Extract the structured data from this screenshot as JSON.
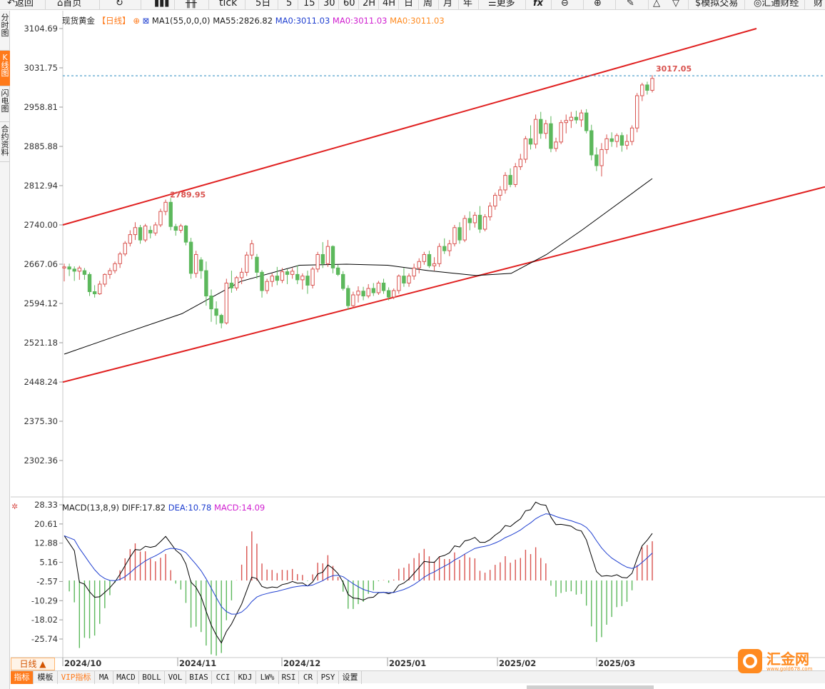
{
  "toolbar": {
    "back": "返回",
    "home": "首页",
    "tick": "tick",
    "periods": [
      "5日",
      "5",
      "15",
      "30",
      "60",
      "2H",
      "4H",
      "日",
      "周",
      "月",
      "年"
    ],
    "more": "更多",
    "fx": "fx",
    "simulate": "模拟交易",
    "huitong": "汇通财经",
    "cut": "财"
  },
  "sidebar": {
    "items": [
      {
        "label": "分时图"
      },
      {
        "label": "K线图",
        "active": true
      },
      {
        "label": "闪电图"
      },
      {
        "label": "合约资料"
      }
    ]
  },
  "main": {
    "instrument": "现货黄金",
    "period_tag": "【日线】",
    "ma_label": "MA1(55,0,0,0)",
    "ma55": "MA55:2826.82",
    "ma0_a": "MA0:3011.03",
    "ma0_b": "MA0:3011.03",
    "ma0_c": "MA0:3011.03",
    "high_label": "2789.95",
    "last_label": "3017.05"
  },
  "macd": {
    "label": "MACD(13,8,9)",
    "diff": "DIFF:17.82",
    "dea": "DEA:10.78",
    "macd": "MACD:14.09"
  },
  "period_button": "日线 ▲",
  "bottom_tabs": [
    "指标",
    "模板",
    "VIP指标",
    "MA",
    "MACD",
    "BOLL",
    "VOL",
    "BIAS",
    "CCI",
    "KDJ",
    "LW%",
    "RSI",
    "CR",
    "PSY",
    "设置"
  ],
  "logo": {
    "name": "汇金网",
    "url": "www.gold678.com"
  },
  "colors": {
    "up": "#d9534f",
    "down": "#5cb85c",
    "channel": "#e02020",
    "ma": "#000000",
    "dea": "#1f3fd0",
    "accent": "#ff7a1a"
  },
  "chart_data": [
    {
      "type": "candlestick",
      "title": "现货黄金",
      "y_ticks": [
        "3104.69",
        "3031.75",
        "2958.81",
        "2885.88",
        "2812.94",
        "2740.00",
        "2667.06",
        "2594.12",
        "2521.18",
        "2448.24",
        "2375.30",
        "2302.36"
      ],
      "x_ticks": [
        "2024/10",
        "2024/11",
        "2024/12",
        "2025/01",
        "2025/02",
        "2025/03"
      ],
      "ylim": [
        2302.36,
        3104.69
      ],
      "candles": [
        [
          2660,
          2668,
          2635,
          2662
        ],
        [
          2662,
          2668,
          2645,
          2658
        ],
        [
          2658,
          2663,
          2636,
          2654
        ],
        [
          2654,
          2664,
          2638,
          2660
        ],
        [
          2655,
          2660,
          2638,
          2648
        ],
        [
          2648,
          2652,
          2608,
          2616
        ],
        [
          2616,
          2628,
          2605,
          2612
        ],
        [
          2612,
          2636,
          2610,
          2630
        ],
        [
          2630,
          2650,
          2625,
          2648
        ],
        [
          2648,
          2660,
          2640,
          2655
        ],
        [
          2655,
          2672,
          2650,
          2668
        ],
        [
          2668,
          2690,
          2660,
          2686
        ],
        [
          2686,
          2710,
          2682,
          2706
        ],
        [
          2706,
          2730,
          2700,
          2722
        ],
        [
          2722,
          2745,
          2712,
          2735
        ],
        [
          2735,
          2740,
          2705,
          2712
        ],
        [
          2712,
          2742,
          2708,
          2738
        ],
        [
          2730,
          2738,
          2715,
          2725
        ],
        [
          2725,
          2745,
          2720,
          2740
        ],
        [
          2740,
          2770,
          2736,
          2765
        ],
        [
          2765,
          2787,
          2758,
          2782
        ],
        [
          2782,
          2790,
          2730,
          2737
        ],
        [
          2737,
          2742,
          2720,
          2730
        ],
        [
          2730,
          2742,
          2725,
          2738
        ],
        [
          2738,
          2740,
          2702,
          2708
        ],
        [
          2708,
          2716,
          2640,
          2650
        ],
        [
          2650,
          2692,
          2642,
          2685
        ],
        [
          2675,
          2680,
          2640,
          2655
        ],
        [
          2655,
          2672,
          2590,
          2608
        ],
        [
          2608,
          2620,
          2560,
          2584
        ],
        [
          2584,
          2598,
          2555,
          2572
        ],
        [
          2572,
          2575,
          2548,
          2558
        ],
        [
          2558,
          2640,
          2555,
          2632
        ],
        [
          2632,
          2655,
          2614,
          2623
        ],
        [
          2623,
          2645,
          2618,
          2642
        ],
        [
          2642,
          2660,
          2630,
          2652
        ],
        [
          2652,
          2690,
          2645,
          2684
        ],
        [
          2684,
          2712,
          2676,
          2705
        ],
        [
          2680,
          2686,
          2640,
          2652
        ],
        [
          2652,
          2656,
          2605,
          2618
        ],
        [
          2618,
          2640,
          2612,
          2635
        ],
        [
          2635,
          2650,
          2625,
          2645
        ],
        [
          2645,
          2662,
          2628,
          2637
        ],
        [
          2637,
          2660,
          2632,
          2653
        ],
        [
          2653,
          2658,
          2630,
          2648
        ],
        [
          2648,
          2660,
          2640,
          2654
        ],
        [
          2648,
          2665,
          2630,
          2638
        ],
        [
          2638,
          2650,
          2620,
          2645
        ],
        [
          2645,
          2655,
          2612,
          2628
        ],
        [
          2628,
          2662,
          2622,
          2658
        ],
        [
          2658,
          2690,
          2652,
          2685
        ],
        [
          2685,
          2708,
          2660,
          2668
        ],
        [
          2668,
          2712,
          2662,
          2700
        ],
        [
          2700,
          2702,
          2650,
          2660
        ],
        [
          2660,
          2666,
          2645,
          2648
        ],
        [
          2648,
          2654,
          2618,
          2622
        ],
        [
          2622,
          2628,
          2582,
          2590
        ],
        [
          2590,
          2616,
          2585,
          2610
        ],
        [
          2610,
          2626,
          2596,
          2617
        ],
        [
          2617,
          2625,
          2600,
          2608
        ],
        [
          2608,
          2630,
          2604,
          2622
        ],
        [
          2622,
          2632,
          2608,
          2614
        ],
        [
          2614,
          2636,
          2610,
          2632
        ],
        [
          2632,
          2640,
          2612,
          2618
        ],
        [
          2618,
          2624,
          2600,
          2606
        ],
        [
          2606,
          2622,
          2602,
          2618
        ],
        [
          2618,
          2648,
          2612,
          2645
        ],
        [
          2645,
          2660,
          2625,
          2632
        ],
        [
          2632,
          2650,
          2625,
          2645
        ],
        [
          2645,
          2668,
          2638,
          2660
        ],
        [
          2660,
          2678,
          2650,
          2672
        ],
        [
          2672,
          2690,
          2666,
          2685
        ],
        [
          2685,
          2692,
          2660,
          2664
        ],
        [
          2664,
          2680,
          2655,
          2668
        ],
        [
          2668,
          2706,
          2662,
          2700
        ],
        [
          2700,
          2715,
          2686,
          2692
        ],
        [
          2692,
          2712,
          2682,
          2705
        ],
        [
          2705,
          2740,
          2700,
          2735
        ],
        [
          2735,
          2745,
          2705,
          2712
        ],
        [
          2712,
          2758,
          2708,
          2752
        ],
        [
          2752,
          2765,
          2730,
          2744
        ],
        [
          2744,
          2764,
          2735,
          2758
        ],
        [
          2758,
          2775,
          2725,
          2732
        ],
        [
          2732,
          2760,
          2728,
          2755
        ],
        [
          2755,
          2782,
          2748,
          2775
        ],
        [
          2775,
          2800,
          2768,
          2795
        ],
        [
          2795,
          2812,
          2785,
          2805
        ],
        [
          2805,
          2838,
          2798,
          2832
        ],
        [
          2832,
          2845,
          2810,
          2815
        ],
        [
          2815,
          2855,
          2810,
          2848
        ],
        [
          2848,
          2872,
          2842,
          2862
        ],
        [
          2862,
          2905,
          2855,
          2900
        ],
        [
          2900,
          2925,
          2880,
          2890
        ],
        [
          2890,
          2945,
          2882,
          2936
        ],
        [
          2936,
          2950,
          2900,
          2910
        ],
        [
          2910,
          2935,
          2900,
          2928
        ],
        [
          2928,
          2942,
          2875,
          2882
        ],
        [
          2882,
          2902,
          2876,
          2894
        ],
        [
          2894,
          2935,
          2890,
          2930
        ],
        [
          2930,
          2945,
          2910,
          2934
        ],
        [
          2934,
          2950,
          2920,
          2940
        ],
        [
          2940,
          2952,
          2928,
          2935
        ],
        [
          2935,
          2954,
          2922,
          2948
        ],
        [
          2948,
          2955,
          2910,
          2915
        ],
        [
          2915,
          2926,
          2860,
          2870
        ],
        [
          2870,
          2884,
          2840,
          2850
        ],
        [
          2850,
          2892,
          2830,
          2880
        ],
        [
          2880,
          2908,
          2872,
          2900
        ],
        [
          2900,
          2912,
          2885,
          2895
        ],
        [
          2895,
          2910,
          2884,
          2906
        ],
        [
          2906,
          2912,
          2876,
          2888
        ],
        [
          2888,
          2908,
          2880,
          2895
        ],
        [
          2895,
          2925,
          2888,
          2920
        ],
        [
          2920,
          2985,
          2912,
          2980
        ],
        [
          2980,
          3004,
          2970,
          3000
        ],
        [
          3000,
          3006,
          2982,
          2990
        ],
        [
          2990,
          3018,
          2986,
          3012
        ]
      ],
      "ma55": [
        [
          0,
          2500
        ],
        [
          0.1,
          2538
        ],
        [
          0.2,
          2575
        ],
        [
          0.3,
          2635
        ],
        [
          0.4,
          2665
        ],
        [
          0.48,
          2667
        ],
        [
          0.55,
          2665
        ],
        [
          0.62,
          2655
        ],
        [
          0.7,
          2646
        ],
        [
          0.76,
          2650
        ],
        [
          0.82,
          2685
        ],
        [
          0.88,
          2730
        ],
        [
          0.93,
          2770
        ],
        [
          1,
          2826
        ]
      ],
      "channel_upper": [
        [
          2740,
          3104.69
        ],
        [
          2948,
          3104.69
        ]
      ],
      "channel_lower": [
        [
          2448,
          2812.94
        ],
        [
          2590,
          2812.94
        ]
      ]
    },
    {
      "type": "macd",
      "y_ticks": [
        "28.33",
        "20.61",
        "12.88",
        "5.16",
        "-2.57",
        "-10.29",
        "-18.02",
        "-25.74"
      ],
      "ylim": [
        -30,
        30
      ]
    }
  ]
}
